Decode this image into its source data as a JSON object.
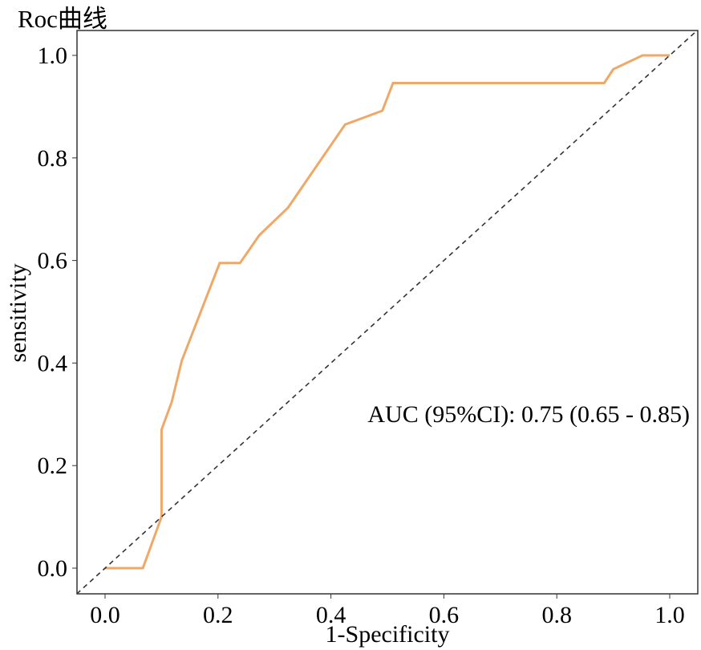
{
  "chart_data": {
    "type": "line",
    "title": "Roc曲线",
    "xlabel": "1-Specificity",
    "ylabel": "sensitivity",
    "xlim": [
      -0.05,
      1.05
    ],
    "ylim": [
      -0.05,
      1.05
    ],
    "xticks": [
      "0.0",
      "0.2",
      "0.4",
      "0.6",
      "0.8",
      "1.0"
    ],
    "yticks": [
      "0.0",
      "0.2",
      "0.4",
      "0.6",
      "0.8",
      "1.0"
    ],
    "grid": false,
    "annotation": "AUC (95%CI): 0.75 (0.65 - 0.85)",
    "series": [
      {
        "name": "ROC",
        "color": "#F0A868",
        "x": [
          0.0,
          0.067,
          0.1,
          0.1,
          0.118,
          0.136,
          0.203,
          0.239,
          0.273,
          0.324,
          0.425,
          0.491,
          0.51,
          0.884,
          0.9,
          0.952,
          1.0
        ],
        "y": [
          0.0,
          0.0,
          0.1,
          0.27,
          0.324,
          0.405,
          0.595,
          0.595,
          0.649,
          0.703,
          0.865,
          0.892,
          0.946,
          0.946,
          0.973,
          1.0,
          1.0
        ]
      },
      {
        "name": "reference",
        "color": "#333333",
        "x": [
          -0.05,
          1.05
        ],
        "y": [
          -0.05,
          1.05
        ]
      }
    ]
  }
}
